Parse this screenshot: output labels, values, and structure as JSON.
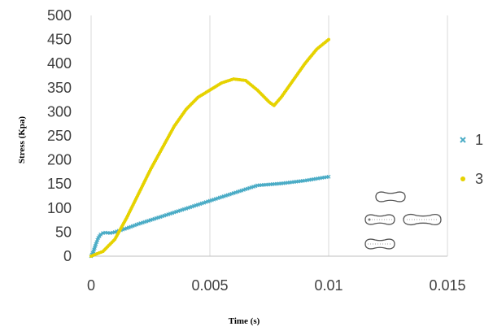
{
  "chart_data": {
    "type": "scatter",
    "title": "",
    "xlabel": "Time (s)",
    "ylabel": "Stress (Kpa)",
    "xlim": [
      0,
      0.015
    ],
    "ylim": [
      0,
      500
    ],
    "x_ticks": [
      "0",
      "0.005",
      "0.01",
      "0.015"
    ],
    "x_tick_values": [
      0,
      0.005,
      0.01,
      0.015
    ],
    "y_ticks": [
      "0",
      "50",
      "100",
      "150",
      "200",
      "250",
      "300",
      "350",
      "400",
      "450",
      "500"
    ],
    "y_tick_values": [
      0,
      50,
      100,
      150,
      200,
      250,
      300,
      350,
      400,
      450,
      500
    ],
    "grid": "vertical",
    "legend_position": "right",
    "series": [
      {
        "name": "1",
        "color": "#4bacc6",
        "marker": "x",
        "points": [
          [
            0,
            0
          ],
          [
            0.0001,
            10
          ],
          [
            0.0002,
            25
          ],
          [
            0.0003,
            38
          ],
          [
            0.0004,
            45
          ],
          [
            0.0005,
            48
          ],
          [
            0.0006,
            49
          ],
          [
            0.0008,
            48
          ],
          [
            0.001,
            50
          ],
          [
            0.0015,
            58
          ],
          [
            0.002,
            67
          ],
          [
            0.003,
            83
          ],
          [
            0.004,
            99
          ],
          [
            0.005,
            115
          ],
          [
            0.006,
            131
          ],
          [
            0.007,
            147
          ],
          [
            0.008,
            151
          ],
          [
            0.009,
            157
          ],
          [
            0.01,
            165
          ]
        ]
      },
      {
        "name": "3",
        "color": "#e6d200",
        "marker": "dot",
        "points": [
          [
            0,
            0
          ],
          [
            0.0005,
            10
          ],
          [
            0.001,
            35
          ],
          [
            0.0015,
            80
          ],
          [
            0.002,
            130
          ],
          [
            0.0025,
            180
          ],
          [
            0.003,
            225
          ],
          [
            0.0035,
            270
          ],
          [
            0.004,
            305
          ],
          [
            0.0045,
            330
          ],
          [
            0.005,
            345
          ],
          [
            0.0055,
            360
          ],
          [
            0.006,
            368
          ],
          [
            0.0065,
            365
          ],
          [
            0.007,
            345
          ],
          [
            0.0075,
            320
          ],
          [
            0.0077,
            313
          ],
          [
            0.008,
            330
          ],
          [
            0.0085,
            365
          ],
          [
            0.009,
            400
          ],
          [
            0.0095,
            430
          ],
          [
            0.01,
            450
          ]
        ]
      }
    ]
  }
}
